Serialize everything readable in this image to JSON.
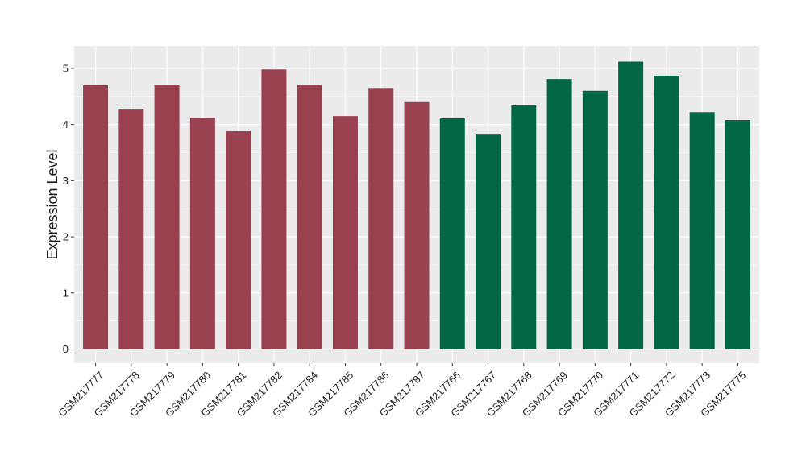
{
  "chart_data": {
    "type": "bar",
    "title": "",
    "xlabel": "",
    "ylabel": "Expression Level",
    "ylim": [
      -0.25,
      5.4
    ],
    "yticks": [
      0,
      1,
      2,
      3,
      4,
      5
    ],
    "grid": true,
    "categories": [
      "GSM217777",
      "GSM217778",
      "GSM217779",
      "GSM217780",
      "GSM217781",
      "GSM217782",
      "GSM217784",
      "GSM217785",
      "GSM217786",
      "GSM217787",
      "GSM217766",
      "GSM217767",
      "GSM217768",
      "GSM217769",
      "GSM217770",
      "GSM217771",
      "GSM217772",
      "GSM217773",
      "GSM217775"
    ],
    "values": [
      4.7,
      4.28,
      4.71,
      4.12,
      3.88,
      4.98,
      4.71,
      4.15,
      4.65,
      4.4,
      4.11,
      3.82,
      4.34,
      4.81,
      4.6,
      5.12,
      4.87,
      4.22,
      4.08
    ],
    "bar_colors": [
      "#99414f",
      "#99414f",
      "#99414f",
      "#99414f",
      "#99414f",
      "#99414f",
      "#99414f",
      "#99414f",
      "#99414f",
      "#99414f",
      "#006644",
      "#006644",
      "#006644",
      "#006644",
      "#006644",
      "#006644",
      "#006644",
      "#006644",
      "#006644"
    ],
    "panel_background": "#ebebeb",
    "gridline_color": "#ffffff"
  }
}
